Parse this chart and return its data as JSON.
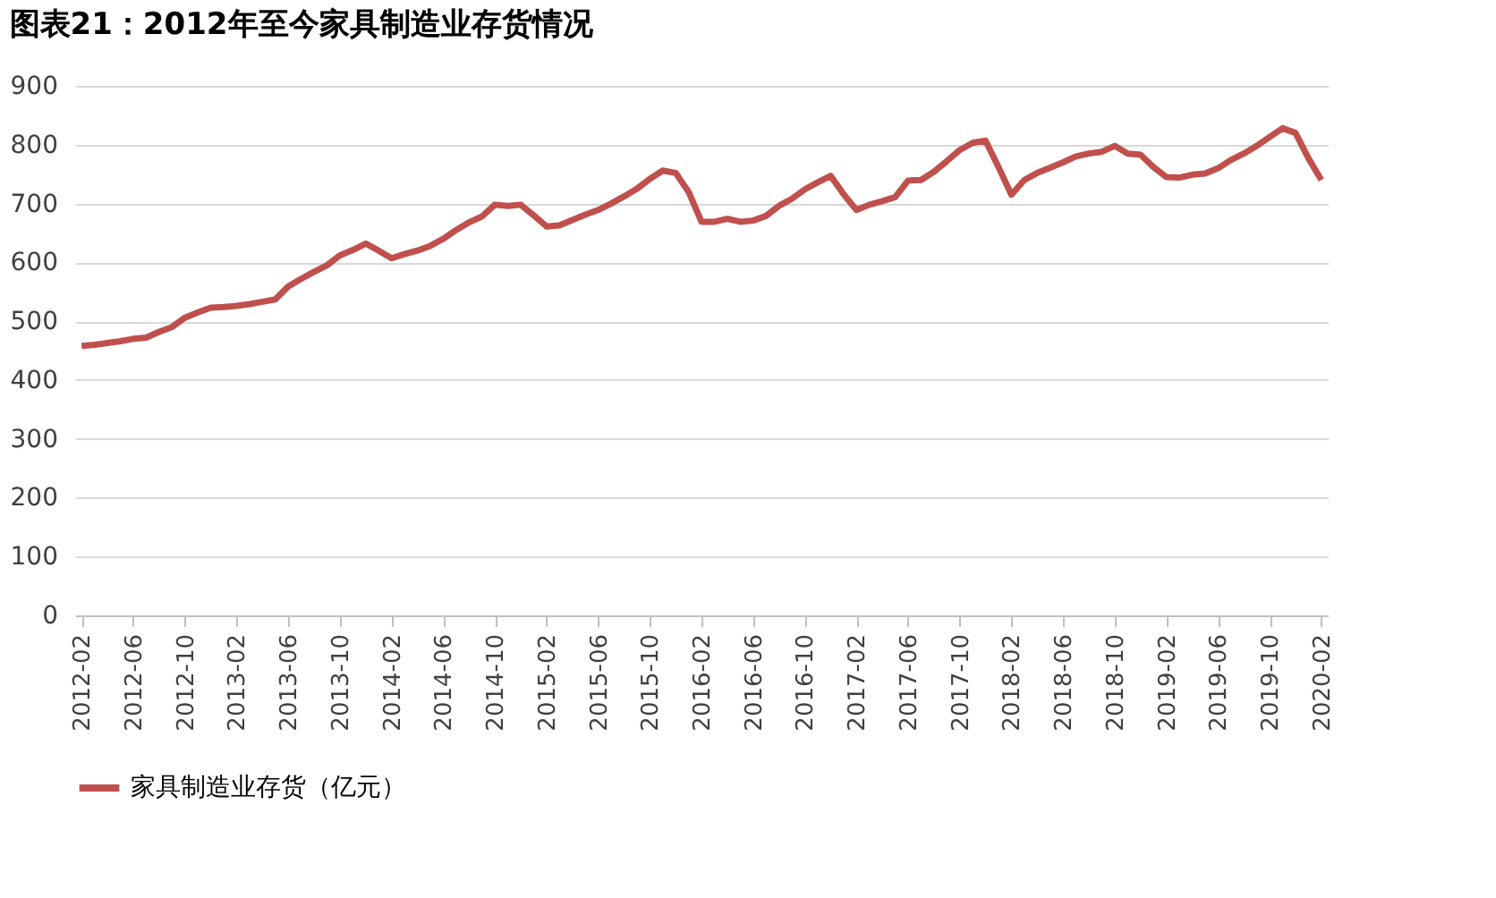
{
  "chart_data": {
    "type": "line",
    "title": "图表21：2012年至今家具制造业存货情况",
    "categories": [
      "2012-02",
      null,
      null,
      null,
      "2012-06",
      null,
      null,
      null,
      "2012-10",
      null,
      null,
      null,
      "2013-02",
      null,
      null,
      null,
      "2013-06",
      null,
      null,
      null,
      "2013-10",
      null,
      null,
      null,
      "2014-02",
      null,
      null,
      null,
      "2014-06",
      null,
      null,
      null,
      "2014-10",
      null,
      null,
      null,
      "2015-02",
      null,
      null,
      null,
      "2015-06",
      null,
      null,
      null,
      "2015-10",
      null,
      null,
      null,
      "2016-02",
      null,
      null,
      null,
      "2016-06",
      null,
      null,
      null,
      "2016-10",
      null,
      null,
      null,
      "2017-02",
      null,
      null,
      null,
      "2017-06",
      null,
      null,
      null,
      "2017-10",
      null,
      null,
      null,
      "2018-02",
      null,
      null,
      null,
      "2018-06",
      null,
      null,
      null,
      "2018-10",
      null,
      null,
      null,
      "2019-02",
      null,
      null,
      null,
      "2019-06",
      null,
      null,
      null,
      "2019-10",
      null,
      null,
      null,
      "2020-02"
    ],
    "series": [
      {
        "name": "家具制造业存货（亿元）",
        "color": "#c0504d",
        "values": [
          458,
          460,
          463,
          466,
          470,
          472,
          482,
          490,
          506,
          515,
          523,
          524,
          526,
          529,
          533,
          537,
          559,
          572,
          584,
          595,
          612,
          621,
          632,
          620,
          607,
          614,
          620,
          628,
          640,
          655,
          668,
          678,
          698,
          696,
          698,
          680,
          661,
          663,
          672,
          681,
          689,
          700,
          712,
          725,
          742,
          756,
          752,
          720,
          669,
          669,
          674,
          669,
          671,
          679,
          696,
          708,
          724,
          736,
          747,
          716,
          689,
          698,
          704,
          711,
          739,
          740,
          754,
          772,
          791,
          803,
          807,
          762,
          715,
          740,
          752,
          761,
          770,
          780,
          785,
          788,
          798,
          785,
          783,
          762,
          745,
          744,
          749,
          751,
          760,
          774,
          785,
          798,
          813,
          828,
          820,
          777,
          740
        ]
      }
    ],
    "ylim": [
      0,
      900
    ],
    "yticks": [
      0,
      100,
      200,
      300,
      400,
      500,
      600,
      700,
      800,
      900
    ],
    "grid": "y",
    "legend": "bottom",
    "marker": "none",
    "line_style": "solid"
  }
}
